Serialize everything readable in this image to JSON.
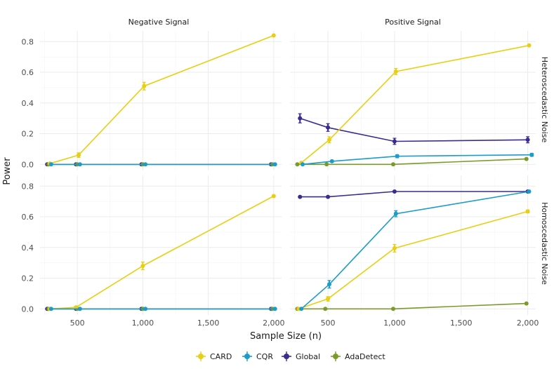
{
  "chart_data": {
    "type": "line",
    "xlabel": "Sample Size (n)",
    "ylabel": "Power",
    "x_ticks": [
      500,
      1000,
      1500,
      2000
    ],
    "x_tick_labels": [
      "500",
      "1,000",
      "1,500",
      "2,000"
    ],
    "y_ticks": [
      0.0,
      0.2,
      0.4,
      0.6,
      0.8
    ],
    "y_tick_labels": [
      "0.0",
      "0.2",
      "0.4",
      "0.6",
      "0.8"
    ],
    "xlim": [
      215,
      2060
    ],
    "ylim": [
      -0.04,
      0.87
    ],
    "col_labels": [
      "Negative Signal",
      "Positive Signal"
    ],
    "row_labels": [
      "Heteroscedastic Noise",
      "Homoscedastic Noise"
    ],
    "legend": [
      {
        "name": "CARD",
        "color": "#e8cf12"
      },
      {
        "name": "CQR",
        "color": "#1b9cc9"
      },
      {
        "name": "Global",
        "color": "#3b2b8f"
      },
      {
        "name": "AdaDetect",
        "color": "#7a9a2a"
      }
    ],
    "panels": [
      {
        "row": "Heteroscedastic Noise",
        "col": "Negative Signal",
        "series": [
          {
            "name": "Global",
            "x": [
              270,
              490,
              990,
              1980
            ],
            "y": [
              0.0,
              0.0,
              0.0,
              0.0
            ],
            "err": [
              0,
              0,
              0,
              0
            ]
          },
          {
            "name": "AdaDetect",
            "x": [
              280,
              500,
              1000,
              1990
            ],
            "y": [
              0.0,
              0.0,
              0.0,
              0.0
            ],
            "err": [
              0,
              0,
              0,
              0
            ]
          },
          {
            "name": "CARD",
            "x": [
              290,
              510,
              1010,
              2000
            ],
            "y": [
              0.005,
              0.06,
              0.51,
              0.84
            ],
            "err": [
              0.005,
              0.015,
              0.025,
              0.005
            ]
          },
          {
            "name": "CQR",
            "x": [
              300,
              520,
              1020,
              2010
            ],
            "y": [
              0.0,
              0.0,
              0.0,
              0.0
            ],
            "err": [
              0,
              0,
              0,
              0
            ]
          }
        ]
      },
      {
        "row": "Heteroscedastic Noise",
        "col": "Positive Signal",
        "series": [
          {
            "name": "Global",
            "x": [
              290,
              500,
              1000,
              2000
            ],
            "y": [
              0.3,
              0.24,
              0.15,
              0.16
            ],
            "err": [
              0.03,
              0.025,
              0.02,
              0.02
            ]
          },
          {
            "name": "AdaDetect",
            "x": [
              270,
              490,
              990,
              1990
            ],
            "y": [
              0.0,
              0.0,
              0.0,
              0.035
            ],
            "err": [
              0,
              0,
              0,
              0.004
            ]
          },
          {
            "name": "CARD",
            "x": [
              300,
              510,
              1010,
              2010
            ],
            "y": [
              0.01,
              0.16,
              0.605,
              0.775
            ],
            "err": [
              0.005,
              0.02,
              0.02,
              0.005
            ]
          },
          {
            "name": "CQR",
            "x": [
              310,
              530,
              1020,
              2030
            ],
            "y": [
              0.0,
              0.02,
              0.053,
              0.062
            ],
            "err": [
              0,
              0.006,
              0.01,
              0.01
            ]
          }
        ]
      },
      {
        "row": "Homoscedastic Noise",
        "col": "Negative Signal",
        "series": [
          {
            "name": "Global",
            "x": [
              270,
              490,
              990,
              1980
            ],
            "y": [
              0.0,
              0.0,
              0.0,
              0.0
            ],
            "err": [
              0,
              0,
              0,
              0
            ]
          },
          {
            "name": "AdaDetect",
            "x": [
              280,
              500,
              1000,
              1990
            ],
            "y": [
              0.0,
              0.0,
              0.0,
              0.0
            ],
            "err": [
              0,
              0,
              0,
              0
            ]
          },
          {
            "name": "CARD",
            "x": [
              290,
              490,
              1000,
              2000
            ],
            "y": [
              0.0,
              0.01,
              0.28,
              0.735
            ],
            "err": [
              0.002,
              0.008,
              0.025,
              0.006
            ]
          },
          {
            "name": "CQR",
            "x": [
              300,
              520,
              1020,
              2010
            ],
            "y": [
              0.0,
              0.0,
              0.0,
              0.0
            ],
            "err": [
              0,
              0,
              0,
              0
            ]
          }
        ]
      },
      {
        "row": "Homoscedastic Noise",
        "col": "Positive Signal",
        "series": [
          {
            "name": "Global",
            "x": [
              290,
              500,
              1000,
              2000
            ],
            "y": [
              0.73,
              0.73,
              0.765,
              0.765
            ],
            "err": [
              0.005,
              0.005,
              0.005,
              0.005
            ]
          },
          {
            "name": "AdaDetect",
            "x": [
              270,
              480,
              990,
              1990
            ],
            "y": [
              0.0,
              0.0,
              0.0,
              0.035
            ],
            "err": [
              0,
              0,
              0,
              0.004
            ]
          },
          {
            "name": "CARD",
            "x": [
              280,
              500,
              1000,
              2000
            ],
            "y": [
              0.0,
              0.065,
              0.395,
              0.635
            ],
            "err": [
              0.003,
              0.015,
              0.025,
              0.01
            ]
          },
          {
            "name": "CQR",
            "x": [
              300,
              510,
              1010,
              2010
            ],
            "y": [
              0.0,
              0.16,
              0.62,
              0.765
            ],
            "err": [
              0.003,
              0.025,
              0.02,
              0.006
            ]
          }
        ]
      }
    ]
  }
}
